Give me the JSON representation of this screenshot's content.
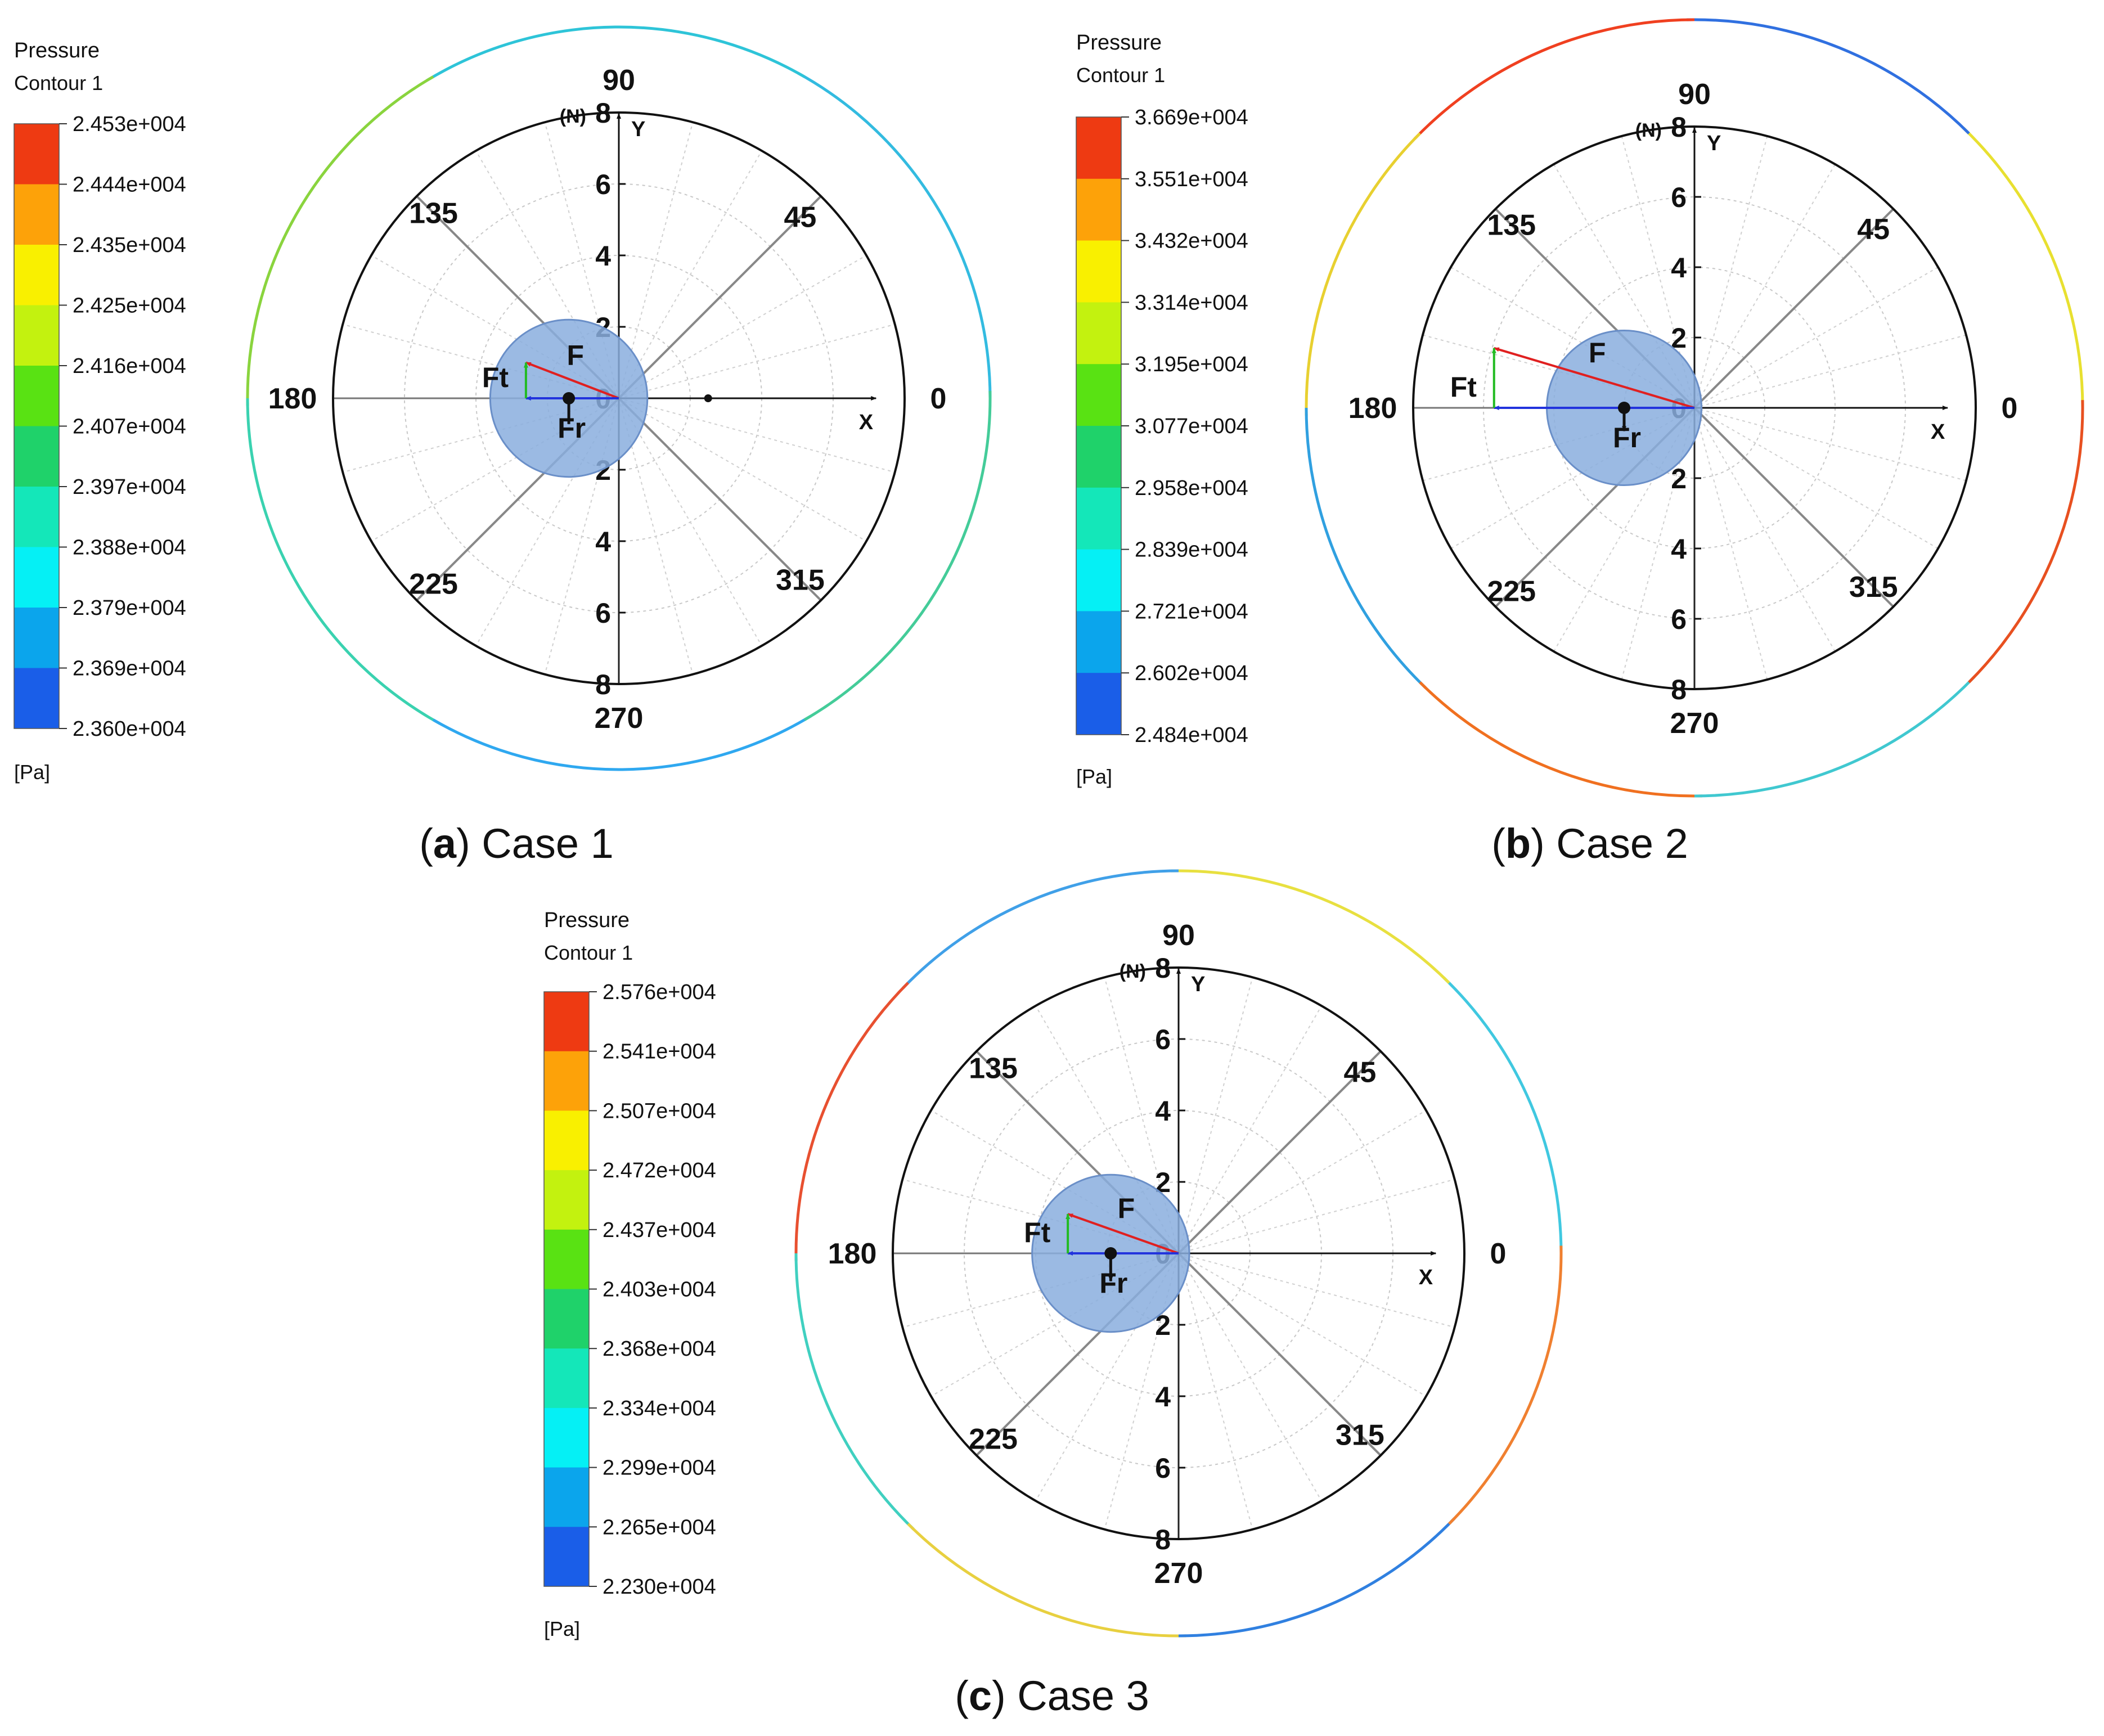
{
  "chart_data": [
    {
      "type": "polar",
      "panel_label": "a",
      "caption": "Case 1",
      "legend": {
        "title": "Pressure",
        "subtitle": "Contour 1",
        "unit": "[Pa]",
        "levels": [
          "2.453e+004",
          "2.444e+004",
          "2.435e+004",
          "2.425e+004",
          "2.416e+004",
          "2.407e+004",
          "2.397e+004",
          "2.388e+004",
          "2.379e+004",
          "2.369e+004",
          "2.360e+004"
        ]
      },
      "angle_labels": [
        "0",
        "45",
        "90",
        "135",
        "180",
        "225",
        "270",
        "315"
      ],
      "radial_unit": "(N)",
      "radial_ticks": [
        0,
        2,
        4,
        6,
        8
      ],
      "radial_range": [
        0,
        8
      ],
      "axis_labels": {
        "x": "X",
        "y": "Y"
      },
      "vector_labels": {
        "resultant": "F",
        "tangential": "Ft",
        "radial": "Fr"
      },
      "forces": {
        "F": {
          "x": -2.6,
          "y": 1.0
        },
        "Ft": {
          "x": -2.6,
          "y": 0
        },
        "Fr": {
          "x": 0,
          "y": -1.2
        }
      },
      "rotor_center": {
        "x": -1.4,
        "y": 0
      },
      "extra_point": {
        "x": 2.5,
        "y": 0
      },
      "ring_colors": [
        "#33bbe0",
        "#2ec4d8",
        "#8ad43e",
        "#3ad2b0",
        "#2fa8f0",
        "#44cc99"
      ]
    },
    {
      "type": "polar",
      "panel_label": "b",
      "caption": "Case 2",
      "legend": {
        "title": "Pressure",
        "subtitle": "Contour 1",
        "unit": "[Pa]",
        "levels": [
          "3.669e+004",
          "3.551e+004",
          "3.432e+004",
          "3.314e+004",
          "3.195e+004",
          "3.077e+004",
          "2.958e+004",
          "2.839e+004",
          "2.721e+004",
          "2.602e+004",
          "2.484e+004"
        ]
      },
      "angle_labels": [
        "0",
        "45",
        "90",
        "135",
        "180",
        "225",
        "270",
        "315"
      ],
      "radial_unit": "(N)",
      "radial_ticks": [
        0,
        2,
        4,
        6,
        8
      ],
      "radial_range": [
        0,
        8
      ],
      "axis_labels": {
        "x": "X",
        "y": "Y"
      },
      "vector_labels": {
        "resultant": "F",
        "tangential": "Ft",
        "radial": "Fr"
      },
      "forces": {
        "F": {
          "x": -5.7,
          "y": 1.7
        },
        "Ft": {
          "x": -5.7,
          "y": 0
        },
        "Fr": {
          "x": 0,
          "y": -1.1
        }
      },
      "rotor_center": {
        "x": -2.0,
        "y": 0
      },
      "ring_colors": [
        "#e8e030",
        "#3070e0",
        "#f04020",
        "#e8d030",
        "#30a0e0",
        "#f07020",
        "#40c8d0",
        "#e85020"
      ]
    },
    {
      "type": "polar",
      "panel_label": "c",
      "caption": "Case 3",
      "legend": {
        "title": "Pressure",
        "subtitle": "Contour 1",
        "unit": "[Pa]",
        "levels": [
          "2.576e+004",
          "2.541e+004",
          "2.507e+004",
          "2.472e+004",
          "2.437e+004",
          "2.403e+004",
          "2.368e+004",
          "2.334e+004",
          "2.299e+004",
          "2.265e+004",
          "2.230e+004"
        ]
      },
      "angle_labels": [
        "0",
        "45",
        "90",
        "135",
        "180",
        "225",
        "270",
        "315"
      ],
      "radial_unit": "(N)",
      "radial_ticks": [
        0,
        2,
        4,
        6,
        8
      ],
      "radial_range": [
        0,
        8
      ],
      "axis_labels": {
        "x": "X",
        "y": "Y"
      },
      "vector_labels": {
        "resultant": "F",
        "tangential": "Ft",
        "radial": "Fr"
      },
      "forces": {
        "F": {
          "x": -3.1,
          "y": 1.1
        },
        "Ft": {
          "x": -3.1,
          "y": 0
        },
        "Fr": {
          "x": 0,
          "y": -1.3
        }
      },
      "rotor_center": {
        "x": -1.9,
        "y": 0
      },
      "ring_colors": [
        "#40c8e0",
        "#e8e040",
        "#40a0e8",
        "#e85030",
        "#40d0c0",
        "#e8d040",
        "#3080e0",
        "#f08030"
      ]
    }
  ],
  "colorbar_colors": [
    "#ee3a12",
    "#fda209",
    "#f9f000",
    "#c3f20f",
    "#59e213",
    "#1fd26a",
    "#14e7b9",
    "#05f0f5",
    "#0ba5ec",
    "#1a5ee8"
  ]
}
